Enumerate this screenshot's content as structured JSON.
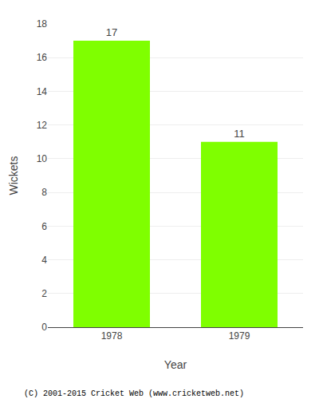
{
  "chart_data": {
    "type": "bar",
    "categories": [
      "1978",
      "1979"
    ],
    "values": [
      17,
      11
    ],
    "color": "#7FFF00",
    "data_labels": true,
    "ylabel": "Wickets",
    "xlabel": "Year",
    "ylim": [
      0,
      18
    ],
    "yticks": [
      0,
      2,
      4,
      6,
      8,
      10,
      12,
      14,
      16,
      18
    ],
    "grid": true,
    "annotations": [
      "(C) 2001-2015 Cricket Web (www.cricketweb.net)"
    ]
  }
}
